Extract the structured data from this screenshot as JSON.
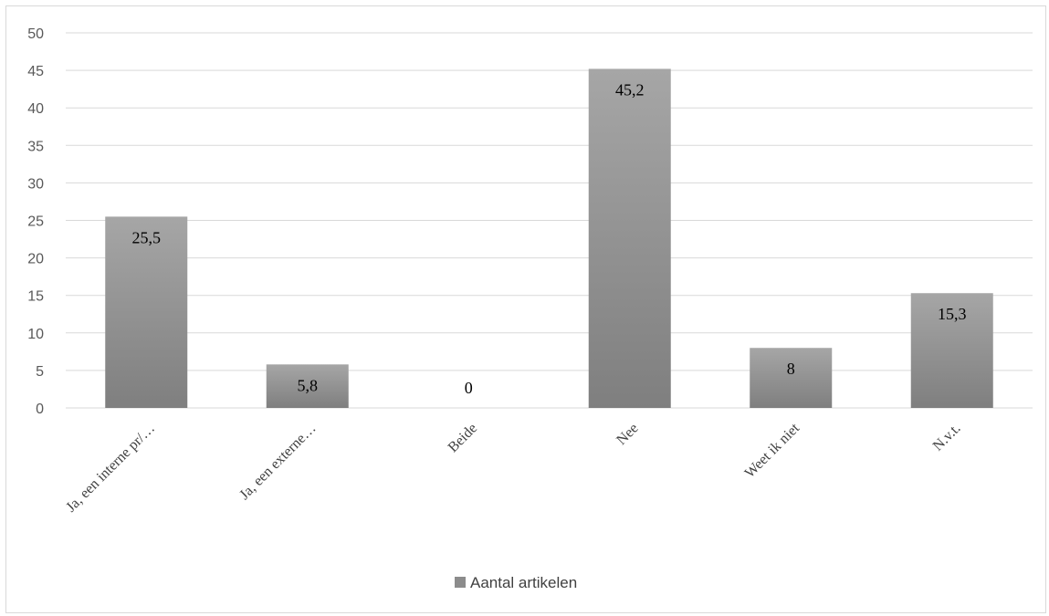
{
  "chart_data": {
    "type": "bar",
    "categories": [
      "Ja, een interne pr/…",
      "Ja, een externe…",
      "Beide",
      "Nee",
      "Weet ik niet",
      "N.v.t."
    ],
    "series": [
      {
        "name": "Aantal artikelen",
        "values": [
          25.5,
          5.8,
          0,
          45.2,
          8,
          15.3
        ]
      }
    ],
    "data_labels": [
      "25,5",
      "5,8",
      "0",
      "45,2",
      "8",
      "15,3"
    ],
    "y_ticks": [
      "0",
      "5",
      "10",
      "15",
      "20",
      "25",
      "30",
      "35",
      "40",
      "45",
      "50"
    ],
    "ylim": [
      0,
      50
    ],
    "grid": true,
    "legend": "bottom",
    "title": "",
    "xlabel": "",
    "ylabel": "",
    "colors": {
      "bar_top": "#a6a6a6",
      "bar_bottom": "#7f7f7f",
      "grid": "#d9d9d9"
    }
  }
}
